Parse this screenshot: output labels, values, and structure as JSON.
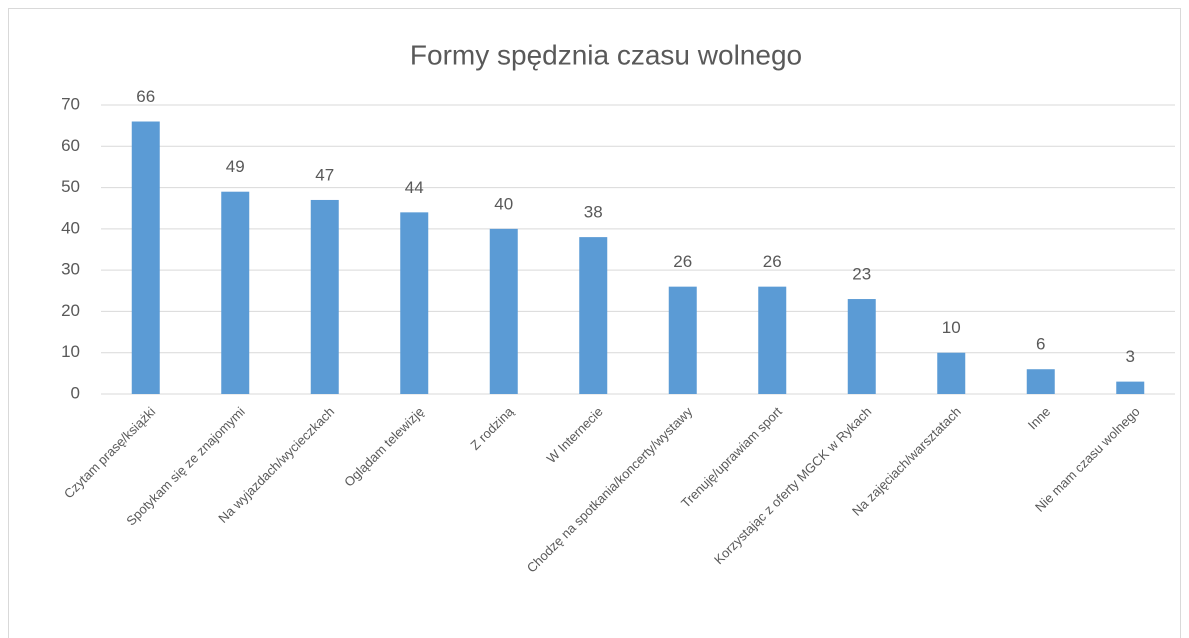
{
  "chart_data": {
    "type": "bar",
    "title": "Formy spędznia  czasu wolnego",
    "categories": [
      "Czytam prasę/książki",
      "Spotykam się ze znajomymi",
      "Na wyjazdach/wycieczkach",
      "Oglądam telewizję",
      "Z rodziną",
      "W Internecie",
      "Chodzę na spotkania/koncerty/wystawy",
      "Trenuję/uprawiam sport",
      "Korzystając z oferty MGCK w Rykach",
      "Na zajęciach/warsztatach",
      "Inne",
      "Nie mam czasu wolnego"
    ],
    "values": [
      66,
      49,
      47,
      44,
      40,
      38,
      26,
      26,
      23,
      10,
      6,
      3
    ],
    "color": "#5b9bd5",
    "ylim": [
      0,
      70
    ],
    "yticks": [
      0,
      10,
      20,
      30,
      40,
      50,
      60,
      70
    ],
    "grid": true
  }
}
